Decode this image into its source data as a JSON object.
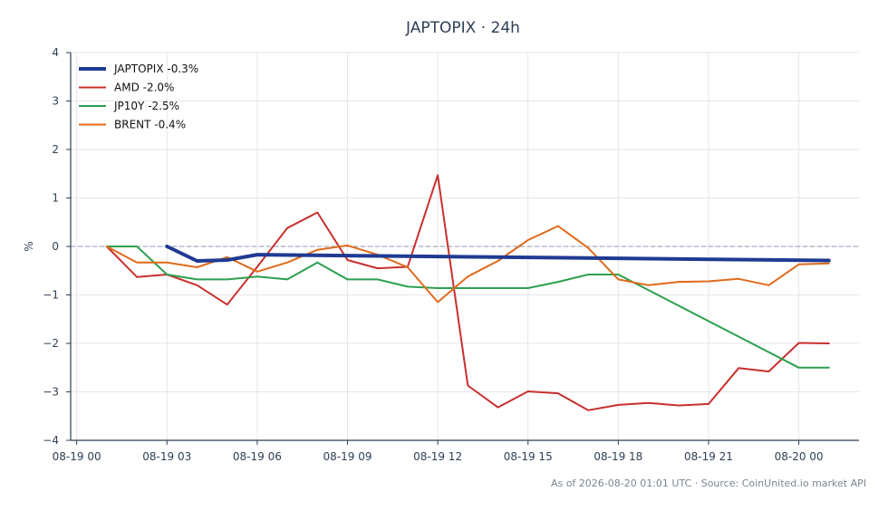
{
  "chart_data": {
    "type": "line",
    "title": "JAPTOPIX · 24h",
    "xlabel": "",
    "ylabel": "%",
    "ylim": [
      -4,
      4
    ],
    "yticks": [
      4,
      3,
      2,
      1,
      0,
      -1,
      -2,
      -3,
      -4
    ],
    "ytick_labels": [
      "4",
      "3",
      "2",
      "1",
      "0",
      "−1",
      "−2",
      "−3",
      "−4"
    ],
    "xlim_hours": [
      -0.2,
      26.0
    ],
    "xticks_hours": [
      0,
      3,
      6,
      9,
      12,
      15,
      18,
      21,
      24
    ],
    "xtick_labels": [
      "08-19 00",
      "08-19 03",
      "08-19 06",
      "08-19 09",
      "08-19 12",
      "08-19 15",
      "08-19 18",
      "08-19 21",
      "08-20 00"
    ],
    "grid": true,
    "zero_line": true,
    "legend_position": "top-left",
    "source_text": "As of 2026-08-20 01:01 UTC · Source: CoinUnited.io market API",
    "series": [
      {
        "name": "JAPTOPIX -0.3%",
        "color": "#1f3a93",
        "width": 4,
        "x": [
          3,
          4,
          5,
          6,
          25
        ],
        "y": [
          0.0,
          -0.3,
          -0.28,
          -0.17,
          -0.29
        ]
      },
      {
        "name": "AMD -2.0%",
        "color": "#c8302e",
        "width": 2,
        "x": [
          1,
          2,
          3,
          4,
          5,
          6,
          7,
          8,
          9,
          10,
          11,
          12,
          13,
          14,
          15,
          16,
          17,
          18,
          19,
          20,
          21,
          22,
          23,
          24,
          25
        ],
        "y": [
          0.0,
          -0.63,
          -0.58,
          -0.8,
          -1.2,
          -0.42,
          0.38,
          0.7,
          -0.28,
          -0.45,
          -0.42,
          1.47,
          -2.87,
          -3.32,
          -2.99,
          -3.03,
          -3.38,
          -3.27,
          -3.23,
          -3.28,
          -3.25,
          -2.51,
          -2.58,
          -1.99,
          -2.0
        ]
      },
      {
        "name": "JP10Y -2.5%",
        "color": "#2ca04f",
        "width": 2,
        "x": [
          1,
          2,
          3,
          4,
          5,
          6,
          7,
          8,
          9,
          10,
          11,
          12,
          13,
          14,
          15,
          16,
          17,
          18,
          24,
          25
        ],
        "y": [
          0.0,
          0.0,
          -0.58,
          -0.68,
          -0.68,
          -0.62,
          -0.68,
          -0.33,
          -0.68,
          -0.68,
          -0.83,
          -0.86,
          -0.86,
          -0.86,
          -0.86,
          -0.73,
          -0.58,
          -0.58,
          -2.5,
          -2.5
        ]
      },
      {
        "name": "BRENT -0.4%",
        "color": "#e06a1b",
        "width": 2,
        "x": [
          1,
          2,
          3,
          4,
          5,
          6,
          7,
          8,
          9,
          10,
          11,
          12,
          13,
          14,
          15,
          16,
          17,
          18,
          19,
          20,
          21,
          22,
          23,
          24,
          25
        ],
        "y": [
          0.0,
          -0.33,
          -0.33,
          -0.43,
          -0.22,
          -0.52,
          -0.33,
          -0.07,
          0.02,
          -0.17,
          -0.43,
          -1.15,
          -0.62,
          -0.3,
          0.13,
          0.42,
          -0.03,
          -0.68,
          -0.8,
          -0.73,
          -0.72,
          -0.67,
          -0.8,
          -0.37,
          -0.35
        ]
      }
    ]
  }
}
